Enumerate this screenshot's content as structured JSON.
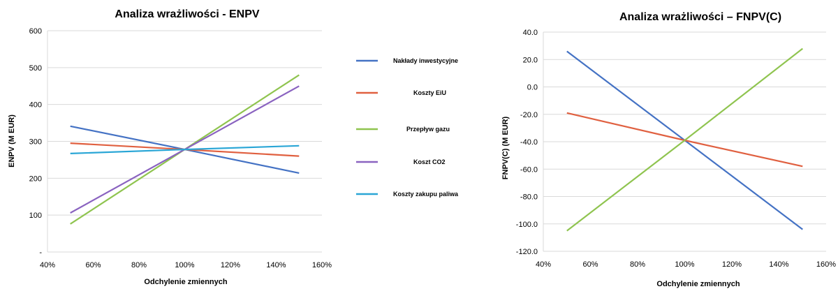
{
  "chart_data": [
    {
      "type": "line",
      "title": "Analiza wrażliwości - ENPV",
      "xlabel": "Odchylenie zmiennych",
      "ylabel": "ENPV (M EUR)",
      "x": [
        0.5,
        1.0,
        1.5
      ],
      "x_ticks": [
        "40%",
        "60%",
        "80%",
        "100%",
        "120%",
        "140%",
        "160%"
      ],
      "xlim": [
        0.4,
        1.6
      ],
      "y_ticks": [
        "-",
        "100",
        "200",
        "300",
        "400",
        "500",
        "600"
      ],
      "ylim": [
        0,
        600
      ],
      "grid": "horizontal",
      "legend_position": "right",
      "series": [
        {
          "name": "Nakłady inwestycyjne",
          "color": "#4472c4",
          "values": [
            341,
            278,
            214
          ]
        },
        {
          "name": "Koszty EiU",
          "color": "#e06040",
          "values": [
            295,
            278,
            260
          ]
        },
        {
          "name": "Przepływ gazu",
          "color": "#8fc44f",
          "values": [
            76,
            278,
            480
          ]
        },
        {
          "name": "Koszt CO2",
          "color": "#8a63c0",
          "values": [
            106,
            278,
            450
          ]
        },
        {
          "name": "Koszty zakupu paliwa",
          "color": "#2aa6d6",
          "values": [
            267,
            278,
            288
          ]
        }
      ]
    },
    {
      "type": "line",
      "title": "Analiza wrażliwości – FNPV(C)",
      "xlabel": "Odchylenie zmiennych",
      "ylabel": "FNPV(C) (M EUR)",
      "x": [
        0.5,
        1.0,
        1.5
      ],
      "x_ticks": [
        "40%",
        "60%",
        "80%",
        "100%",
        "120%",
        "140%",
        "160%"
      ],
      "xlim": [
        0.4,
        1.6
      ],
      "y_ticks": [
        "-120.0",
        "-100.0",
        "-80.0",
        "-60.0",
        "-40.0",
        "-20.0",
        "0.0",
        "20.0",
        "40.0"
      ],
      "ylim": [
        -120,
        40
      ],
      "grid": "horizontal",
      "series": [
        {
          "color": "#4472c4",
          "values": [
            26,
            -39,
            -104
          ]
        },
        {
          "color": "#e06040",
          "values": [
            -19,
            -39,
            -58
          ]
        },
        {
          "color": "#8fc44f",
          "values": [
            -105,
            -39,
            28
          ]
        }
      ]
    }
  ]
}
